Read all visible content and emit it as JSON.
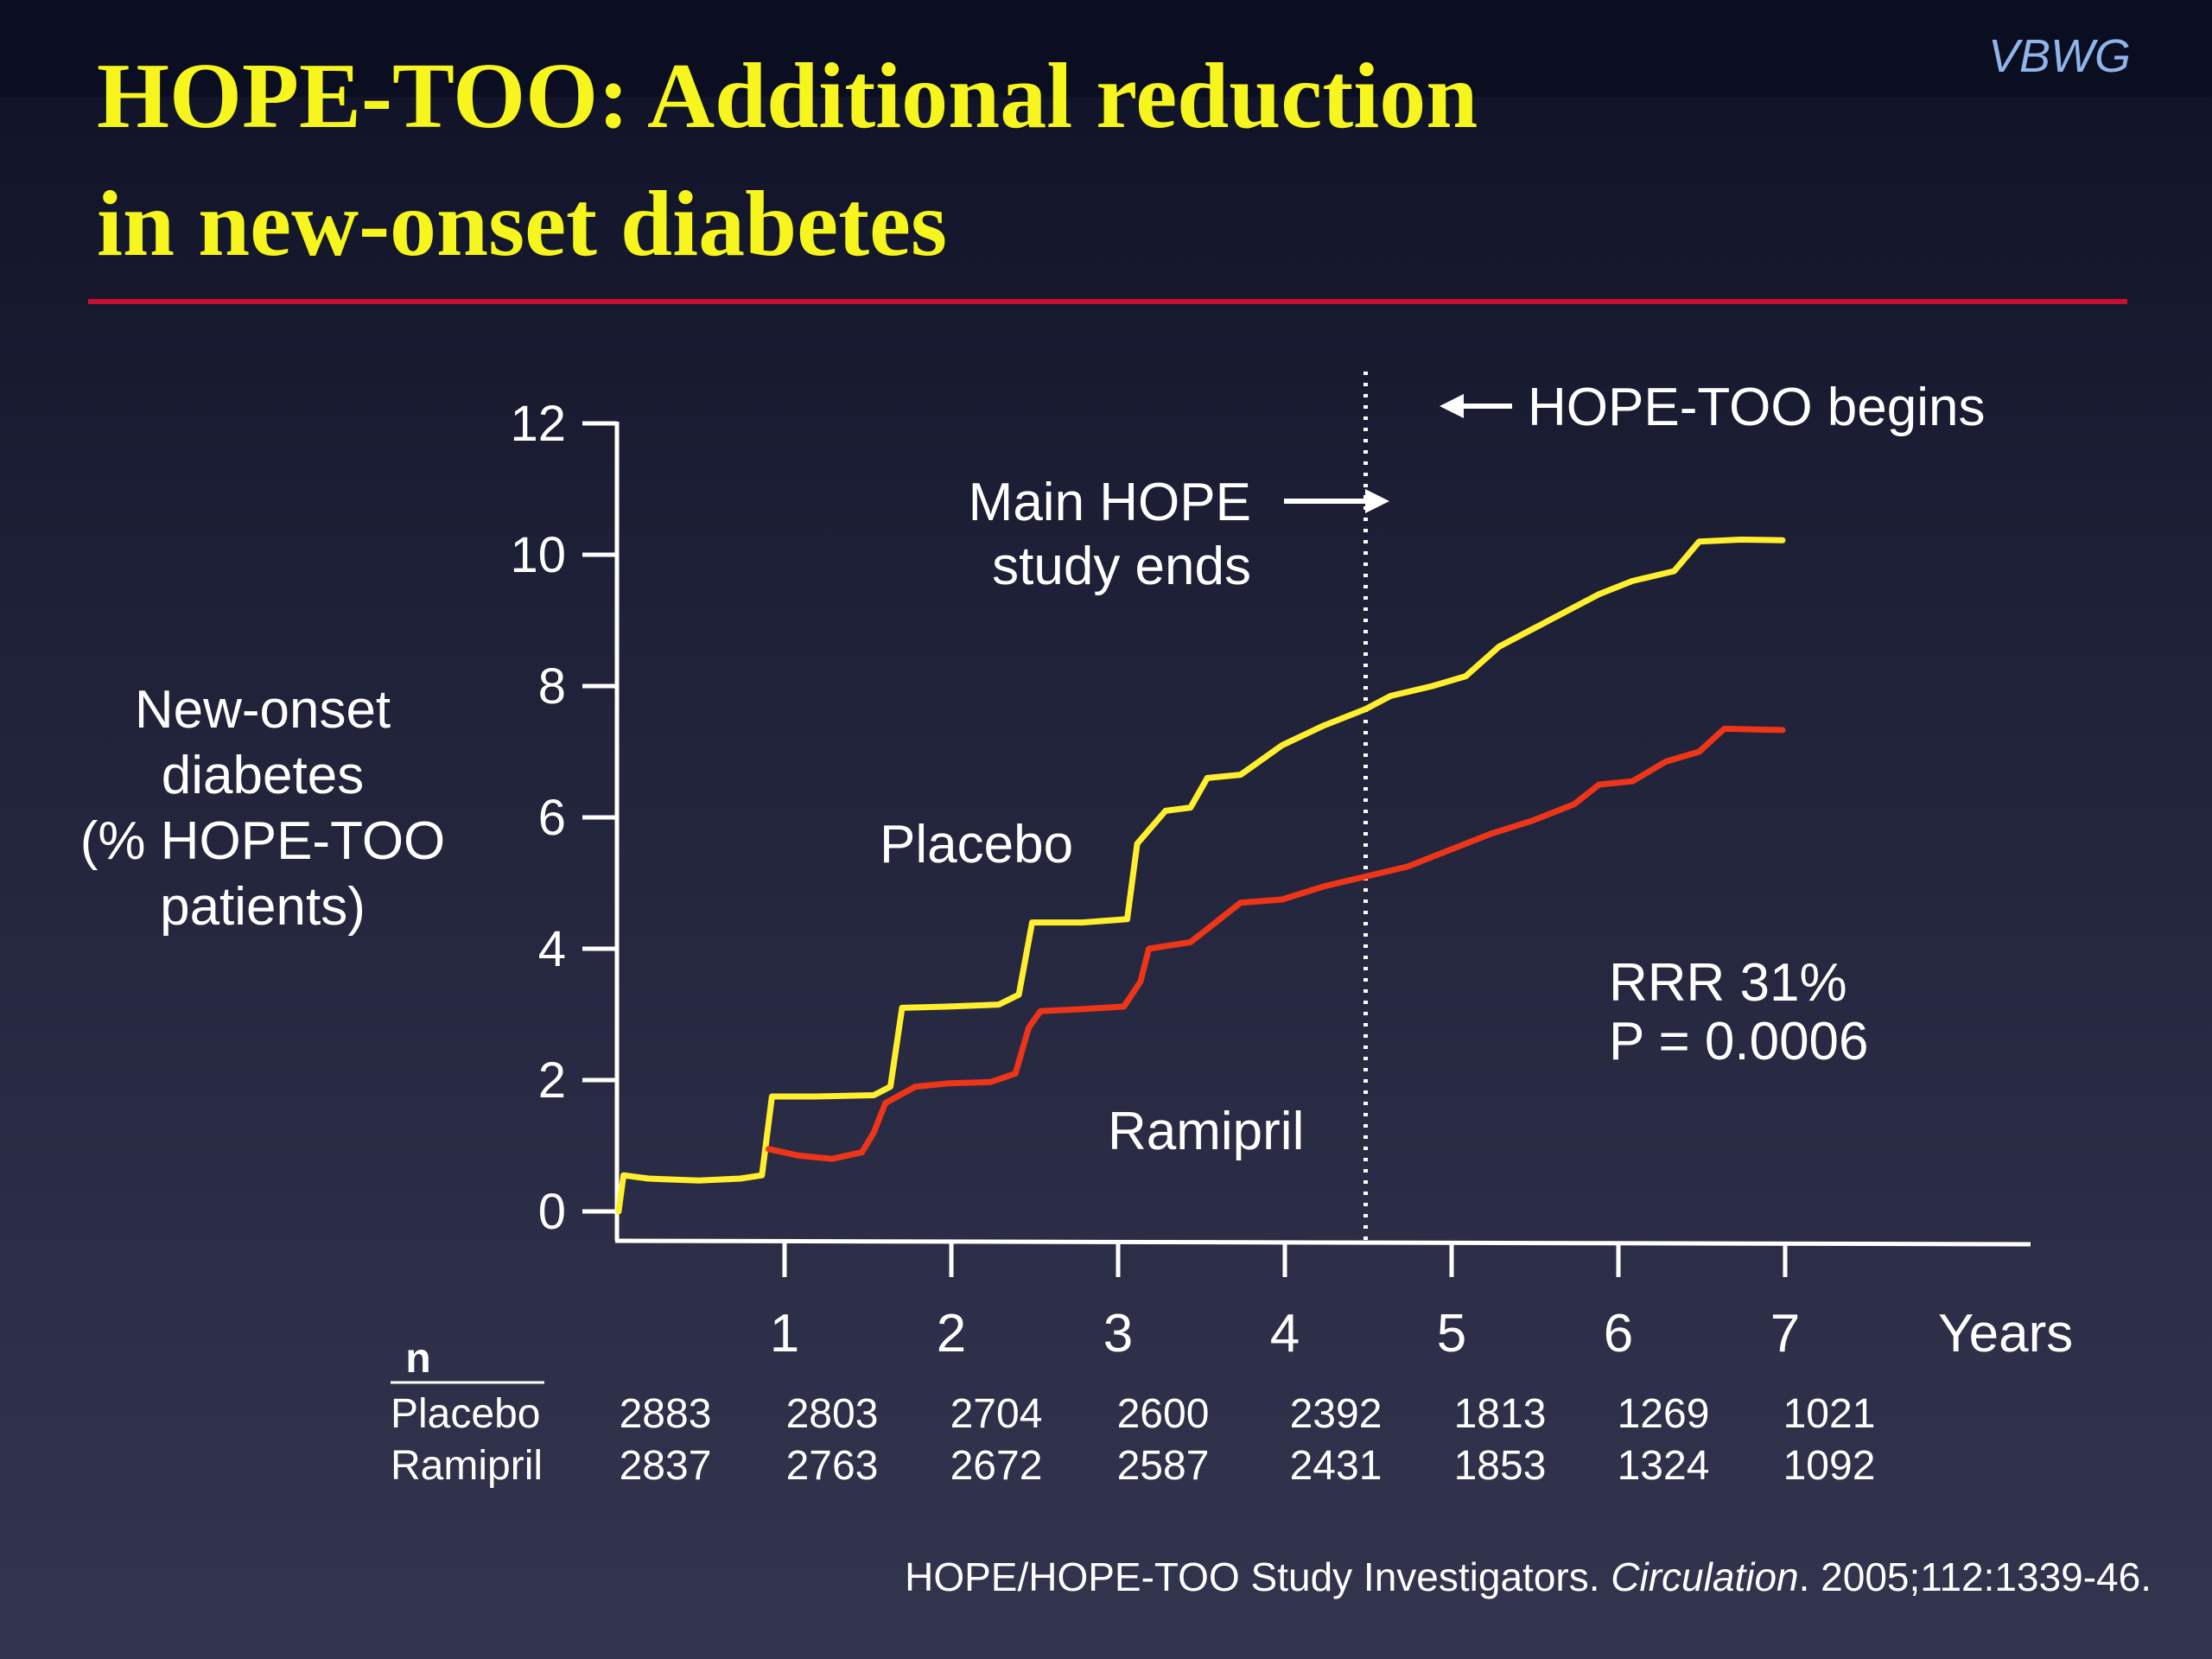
{
  "slide": {
    "title_line1": "HOPE-TOO: Additional reduction",
    "title_line2": "in new-onset diabetes",
    "brand": "VBWG",
    "citation_before": "HOPE/HOPE-TOO Study Investigators. ",
    "citation_journal": "Circulation",
    "citation_after": ". 2005;112:1339-46.",
    "colors": {
      "title": "#f6f51e",
      "rule": "#c8102e",
      "brand": "#8fb4ea"
    }
  },
  "chart_data": {
    "type": "line",
    "ylabel_lines": [
      "New-onset",
      "diabetes",
      "(% HOPE-TOO",
      "patients)"
    ],
    "xlabel": "Years",
    "ylim": [
      0,
      12
    ],
    "xlim": [
      0,
      8.5
    ],
    "yticks": [
      0,
      2,
      4,
      6,
      8,
      10,
      12
    ],
    "xticks": [
      1,
      2,
      3,
      4,
      5,
      6,
      7
    ],
    "grid": false,
    "series": [
      {
        "name": "Placebo",
        "color": "#ffef2e",
        "points": [
          [
            0.02,
            0.0
          ],
          [
            0.05,
            0.55
          ],
          [
            0.2,
            0.5
          ],
          [
            0.5,
            0.47
          ],
          [
            0.75,
            0.5
          ],
          [
            0.88,
            0.55
          ],
          [
            0.94,
            1.75
          ],
          [
            1.2,
            1.75
          ],
          [
            1.55,
            1.77
          ],
          [
            1.65,
            1.9
          ],
          [
            1.72,
            3.1
          ],
          [
            2.0,
            3.12
          ],
          [
            2.3,
            3.15
          ],
          [
            2.42,
            3.3
          ],
          [
            2.5,
            4.4
          ],
          [
            2.8,
            4.4
          ],
          [
            3.07,
            4.45
          ],
          [
            3.13,
            5.6
          ],
          [
            3.3,
            6.1
          ],
          [
            3.45,
            6.15
          ],
          [
            3.55,
            6.6
          ],
          [
            3.75,
            6.65
          ],
          [
            4.0,
            7.1
          ],
          [
            4.25,
            7.4
          ],
          [
            4.5,
            7.65
          ],
          [
            4.65,
            7.85
          ],
          [
            4.9,
            8.0
          ],
          [
            5.1,
            8.15
          ],
          [
            5.3,
            8.6
          ],
          [
            5.6,
            9.0
          ],
          [
            5.9,
            9.4
          ],
          [
            6.1,
            9.6
          ],
          [
            6.35,
            9.75
          ],
          [
            6.5,
            10.2
          ],
          [
            6.75,
            10.23
          ],
          [
            7.0,
            10.22
          ]
        ]
      },
      {
        "name": "Ramipril",
        "color": "#ee3518",
        "points": [
          [
            0.92,
            0.95
          ],
          [
            1.1,
            0.85
          ],
          [
            1.3,
            0.8
          ],
          [
            1.48,
            0.9
          ],
          [
            1.55,
            1.2
          ],
          [
            1.62,
            1.65
          ],
          [
            1.8,
            1.9
          ],
          [
            2.0,
            1.95
          ],
          [
            2.25,
            1.97
          ],
          [
            2.4,
            2.1
          ],
          [
            2.48,
            2.8
          ],
          [
            2.55,
            3.05
          ],
          [
            2.8,
            3.08
          ],
          [
            3.05,
            3.12
          ],
          [
            3.15,
            3.5
          ],
          [
            3.2,
            4.0
          ],
          [
            3.45,
            4.1
          ],
          [
            3.6,
            4.4
          ],
          [
            3.75,
            4.7
          ],
          [
            4.0,
            4.75
          ],
          [
            4.25,
            4.95
          ],
          [
            4.5,
            5.1
          ],
          [
            4.75,
            5.25
          ],
          [
            5.0,
            5.5
          ],
          [
            5.25,
            5.75
          ],
          [
            5.5,
            5.95
          ],
          [
            5.75,
            6.2
          ],
          [
            5.9,
            6.5
          ],
          [
            6.1,
            6.55
          ],
          [
            6.3,
            6.85
          ],
          [
            6.5,
            7.0
          ],
          [
            6.65,
            7.35
          ],
          [
            7.0,
            7.33
          ]
        ]
      }
    ],
    "annotations": {
      "placebo_label": "Placebo",
      "ramipril_label": "Ramipril",
      "main_hope_line1": "Main HOPE",
      "main_hope_line2": "study ends",
      "hope_too_begins": "HOPE-TOO begins",
      "rrr": "RRR 31%",
      "pvalue": "P = 0.0006",
      "divider_year": 4.5
    },
    "n_table": {
      "header": "n",
      "rows": [
        {
          "label": "Placebo",
          "values": [
            "2883",
            "2803",
            "2704",
            "2600",
            "2392",
            "1813",
            "1269",
            "1021"
          ]
        },
        {
          "label": "Ramipril",
          "values": [
            "2837",
            "2763",
            "2672",
            "2587",
            "2431",
            "1853",
            "1324",
            "1092"
          ]
        }
      ],
      "years": [
        0,
        1,
        2,
        3,
        4,
        5,
        6,
        7
      ]
    }
  }
}
